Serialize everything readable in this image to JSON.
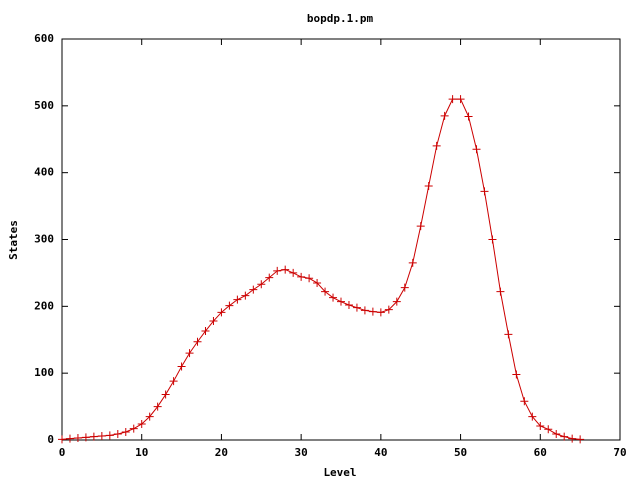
{
  "chart_data": {
    "type": "line",
    "title": "bopdp.1.pm",
    "xlabel": "Level",
    "ylabel": "States",
    "x": [
      0,
      1,
      2,
      3,
      4,
      5,
      6,
      7,
      8,
      9,
      10,
      11,
      12,
      13,
      14,
      15,
      16,
      17,
      18,
      19,
      20,
      21,
      22,
      23,
      24,
      25,
      26,
      27,
      28,
      29,
      30,
      31,
      32,
      33,
      34,
      35,
      36,
      37,
      38,
      39,
      40,
      41,
      42,
      43,
      44,
      45,
      46,
      47,
      48,
      49,
      50,
      51,
      52,
      53,
      54,
      55,
      56,
      57,
      58,
      59,
      60,
      61,
      62,
      63,
      64,
      65
    ],
    "series": [
      {
        "color": "#cc0000",
        "values": [
          1,
          2,
          3,
          4,
          5,
          6,
          7,
          9,
          12,
          17,
          24,
          35,
          50,
          68,
          88,
          110,
          130,
          147,
          163,
          178,
          191,
          201,
          210,
          216,
          225,
          233,
          243,
          253,
          255,
          250,
          244,
          242,
          235,
          222,
          213,
          207,
          202,
          198,
          194,
          192,
          191,
          195,
          207,
          228,
          265,
          320,
          380,
          440,
          485,
          510,
          510,
          484,
          435,
          372,
          300,
          222,
          158,
          98,
          58,
          35,
          21,
          16,
          9,
          5,
          2,
          1
        ]
      }
    ],
    "xlim": [
      0,
      70
    ],
    "xticks": [
      0,
      10,
      20,
      30,
      40,
      50,
      60,
      70
    ],
    "ylim": [
      0,
      600
    ],
    "yticks": [
      0,
      100,
      200,
      300,
      400,
      500,
      600
    ]
  }
}
